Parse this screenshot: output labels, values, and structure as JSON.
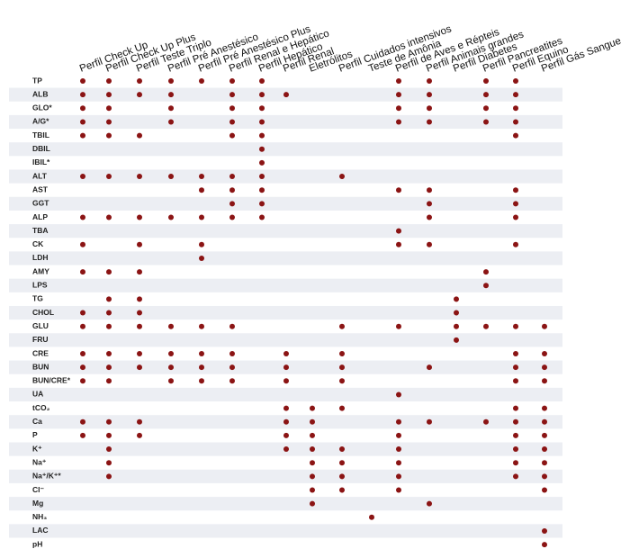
{
  "columns": [
    "Perfil Check Up",
    "Perfil Check Up Plus",
    "Perfil Teste Triplo",
    "Perfil Pré Anestésico",
    "Perfil Pré Anestésico Plus",
    "Perfil Renal e Hepático",
    "Perfil Hepático",
    "Perfil Renal",
    "Eletrólitos",
    "Perfil Cuidados intensivos",
    "Teste de Amônia",
    "Perfil de Aves e Répteis",
    "Perfil Animais grandes",
    "Perfil Diabetes",
    "Perfil Pancreatites",
    "Perfil Equino",
    "Perfil Gás Sangue"
  ],
  "rows": [
    {
      "label": "TP",
      "cells": [
        true,
        true,
        true,
        true,
        true,
        true,
        true,
        false,
        false,
        false,
        false,
        true,
        true,
        false,
        true,
        true,
        false
      ]
    },
    {
      "label": "ALB",
      "cells": [
        true,
        true,
        true,
        true,
        false,
        true,
        true,
        true,
        false,
        false,
        false,
        true,
        true,
        false,
        true,
        true,
        false
      ]
    },
    {
      "label": "GLO*",
      "cells": [
        true,
        true,
        false,
        true,
        false,
        true,
        true,
        false,
        false,
        false,
        false,
        true,
        true,
        false,
        true,
        true,
        false
      ]
    },
    {
      "label": "A/G*",
      "cells": [
        true,
        true,
        false,
        true,
        false,
        true,
        true,
        false,
        false,
        false,
        false,
        true,
        true,
        false,
        true,
        true,
        false
      ]
    },
    {
      "label": "TBIL",
      "cells": [
        true,
        true,
        true,
        false,
        false,
        true,
        true,
        false,
        false,
        false,
        false,
        false,
        false,
        false,
        false,
        true,
        false
      ]
    },
    {
      "label": "DBIL",
      "cells": [
        false,
        false,
        false,
        false,
        false,
        false,
        true,
        false,
        false,
        false,
        false,
        false,
        false,
        false,
        false,
        false,
        false
      ]
    },
    {
      "label": "IBIL*",
      "cells": [
        false,
        false,
        false,
        false,
        false,
        false,
        true,
        false,
        false,
        false,
        false,
        false,
        false,
        false,
        false,
        false,
        false
      ]
    },
    {
      "label": "ALT",
      "cells": [
        true,
        true,
        true,
        true,
        true,
        true,
        true,
        false,
        false,
        true,
        false,
        false,
        false,
        false,
        false,
        false,
        false
      ]
    },
    {
      "label": "AST",
      "cells": [
        false,
        false,
        false,
        false,
        true,
        true,
        true,
        false,
        false,
        false,
        false,
        true,
        true,
        false,
        false,
        true,
        false
      ]
    },
    {
      "label": "GGT",
      "cells": [
        false,
        false,
        false,
        false,
        false,
        true,
        true,
        false,
        false,
        false,
        false,
        false,
        true,
        false,
        false,
        true,
        false
      ]
    },
    {
      "label": "ALP",
      "cells": [
        true,
        true,
        true,
        true,
        true,
        true,
        true,
        false,
        false,
        false,
        false,
        false,
        true,
        false,
        false,
        true,
        false
      ]
    },
    {
      "label": "TBA",
      "cells": [
        false,
        false,
        false,
        false,
        false,
        false,
        false,
        false,
        false,
        false,
        false,
        true,
        false,
        false,
        false,
        false,
        false
      ]
    },
    {
      "label": "CK",
      "cells": [
        true,
        false,
        true,
        false,
        true,
        false,
        false,
        false,
        false,
        false,
        false,
        true,
        true,
        false,
        false,
        true,
        false
      ]
    },
    {
      "label": "LDH",
      "cells": [
        false,
        false,
        false,
        false,
        true,
        false,
        false,
        false,
        false,
        false,
        false,
        false,
        false,
        false,
        false,
        false,
        false
      ]
    },
    {
      "label": "AMY",
      "cells": [
        true,
        true,
        true,
        false,
        false,
        false,
        false,
        false,
        false,
        false,
        false,
        false,
        false,
        false,
        true,
        false,
        false
      ]
    },
    {
      "label": "LPS",
      "cells": [
        false,
        false,
        false,
        false,
        false,
        false,
        false,
        false,
        false,
        false,
        false,
        false,
        false,
        false,
        true,
        false,
        false
      ]
    },
    {
      "label": "TG",
      "cells": [
        false,
        true,
        true,
        false,
        false,
        false,
        false,
        false,
        false,
        false,
        false,
        false,
        false,
        true,
        false,
        false,
        false
      ]
    },
    {
      "label": "CHOL",
      "cells": [
        true,
        true,
        true,
        false,
        false,
        false,
        false,
        false,
        false,
        false,
        false,
        false,
        false,
        true,
        false,
        false,
        false
      ]
    },
    {
      "label": "GLU",
      "cells": [
        true,
        true,
        true,
        true,
        true,
        true,
        false,
        false,
        false,
        true,
        false,
        true,
        false,
        true,
        true,
        true,
        true
      ]
    },
    {
      "label": "FRU",
      "cells": [
        false,
        false,
        false,
        false,
        false,
        false,
        false,
        false,
        false,
        false,
        false,
        false,
        false,
        true,
        false,
        false,
        false
      ]
    },
    {
      "label": "CRE",
      "cells": [
        true,
        true,
        true,
        true,
        true,
        true,
        false,
        true,
        false,
        true,
        false,
        false,
        false,
        false,
        false,
        true,
        true
      ]
    },
    {
      "label": "BUN",
      "cells": [
        true,
        true,
        true,
        true,
        true,
        true,
        false,
        true,
        false,
        true,
        false,
        false,
        true,
        false,
        false,
        true,
        true
      ]
    },
    {
      "label": "BUN/CRE*",
      "cells": [
        true,
        true,
        false,
        true,
        true,
        true,
        false,
        true,
        false,
        true,
        false,
        false,
        false,
        false,
        false,
        true,
        true
      ]
    },
    {
      "label": "UA",
      "cells": [
        false,
        false,
        false,
        false,
        false,
        false,
        false,
        false,
        false,
        false,
        false,
        true,
        false,
        false,
        false,
        false,
        false
      ]
    },
    {
      "label": "tCO₂",
      "cells": [
        false,
        false,
        false,
        false,
        false,
        false,
        false,
        true,
        true,
        true,
        false,
        false,
        false,
        false,
        false,
        true,
        true
      ]
    },
    {
      "label": "Ca",
      "cells": [
        true,
        true,
        true,
        false,
        false,
        false,
        false,
        true,
        true,
        false,
        false,
        true,
        true,
        false,
        true,
        true,
        true
      ]
    },
    {
      "label": "P",
      "cells": [
        true,
        true,
        true,
        false,
        false,
        false,
        false,
        true,
        true,
        false,
        false,
        true,
        false,
        false,
        false,
        true,
        true
      ]
    },
    {
      "label": "K⁺",
      "cells": [
        false,
        true,
        false,
        false,
        false,
        false,
        false,
        true,
        true,
        true,
        false,
        true,
        false,
        false,
        false,
        true,
        true
      ]
    },
    {
      "label": "Na⁺",
      "cells": [
        false,
        true,
        false,
        false,
        false,
        false,
        false,
        false,
        true,
        true,
        false,
        true,
        false,
        false,
        false,
        true,
        true
      ]
    },
    {
      "label": "Na⁺/K⁺*",
      "cells": [
        false,
        true,
        false,
        false,
        false,
        false,
        false,
        false,
        true,
        true,
        false,
        true,
        false,
        false,
        false,
        true,
        true
      ]
    },
    {
      "label": "Cl⁻",
      "cells": [
        false,
        false,
        false,
        false,
        false,
        false,
        false,
        false,
        true,
        true,
        false,
        true,
        false,
        false,
        false,
        false,
        true
      ]
    },
    {
      "label": "Mg",
      "cells": [
        false,
        false,
        false,
        false,
        false,
        false,
        false,
        false,
        true,
        false,
        false,
        false,
        true,
        false,
        false,
        false,
        false
      ]
    },
    {
      "label": "NH₃",
      "cells": [
        false,
        false,
        false,
        false,
        false,
        false,
        false,
        false,
        false,
        false,
        true,
        false,
        false,
        false,
        false,
        false,
        false
      ]
    },
    {
      "label": "LAC",
      "cells": [
        false,
        false,
        false,
        false,
        false,
        false,
        false,
        false,
        false,
        false,
        false,
        false,
        false,
        false,
        false,
        false,
        true
      ]
    },
    {
      "label": "pH",
      "cells": [
        false,
        false,
        false,
        false,
        false,
        false,
        false,
        false,
        false,
        false,
        false,
        false,
        false,
        false,
        false,
        false,
        true
      ]
    }
  ]
}
